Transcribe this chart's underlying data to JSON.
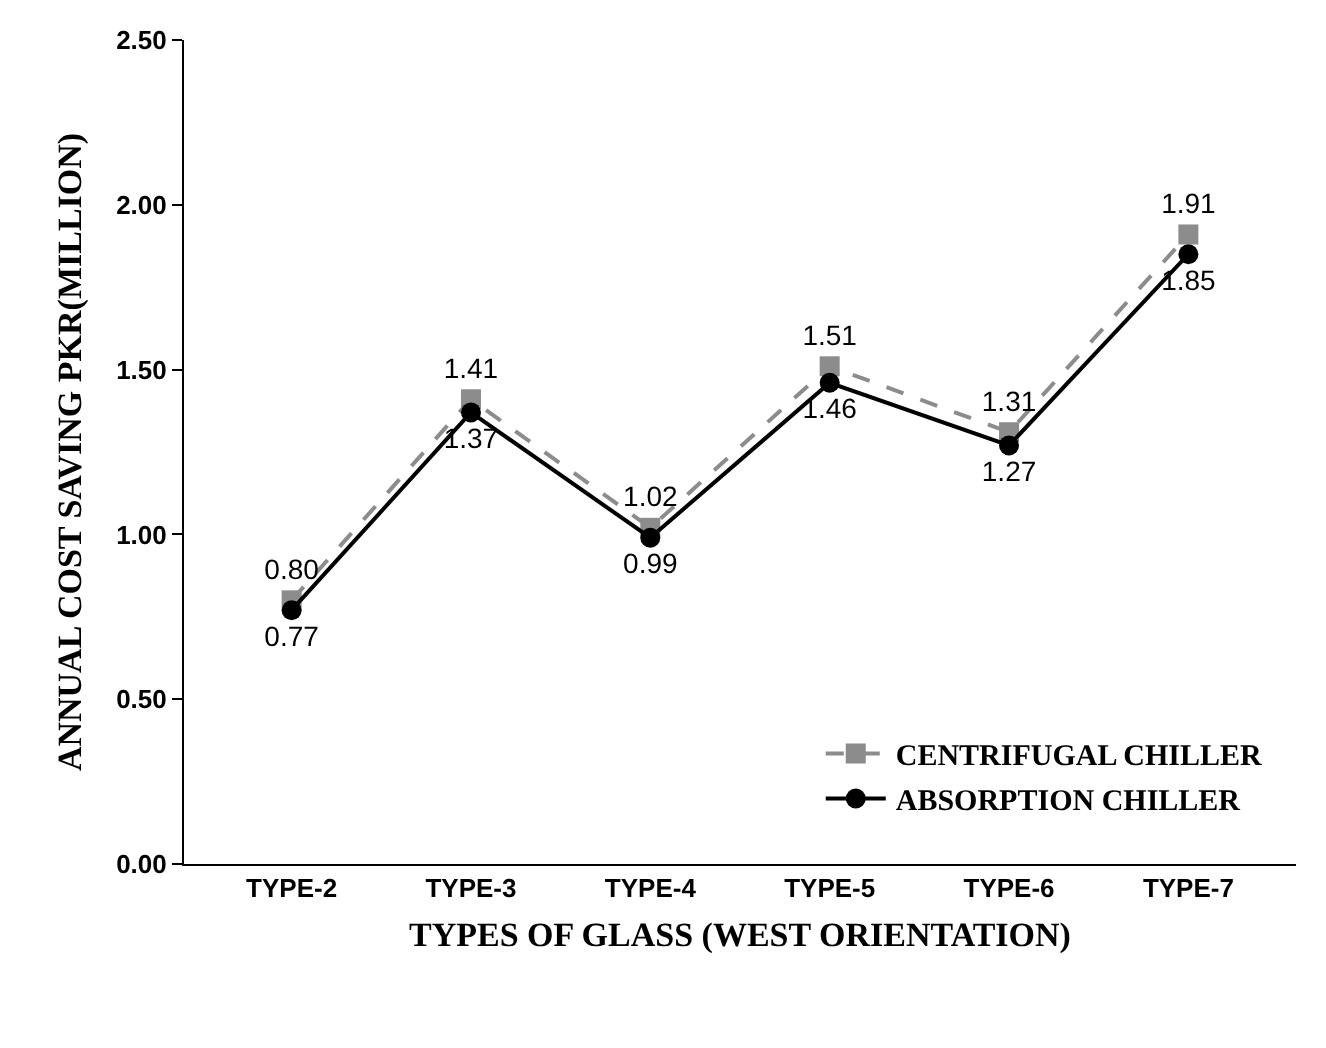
{
  "chart_data": {
    "type": "line",
    "xlabel": "TYPES OF GLASS (WEST ORIENTATION)",
    "ylabel": "ANNUAL COST SAVING PKR(MILLION)",
    "categories": [
      "TYPE-2",
      "TYPE-3",
      "TYPE-4",
      "TYPE-5",
      "TYPE-6",
      "TYPE-7"
    ],
    "series": [
      {
        "name": "CENTRIFUGAL CHILLER",
        "color": "#8c8c8c",
        "marker": "square",
        "line_style": "dashed",
        "values": [
          0.8,
          1.41,
          1.02,
          1.51,
          1.31,
          1.91
        ],
        "value_labels": [
          "0.80",
          "1.41",
          "1.02",
          "1.51",
          "1.31",
          "1.91"
        ]
      },
      {
        "name": "ABSORPTION CHILLER",
        "color": "#000000",
        "marker": "circle",
        "line_style": "solid",
        "values": [
          0.77,
          1.37,
          0.99,
          1.46,
          1.27,
          1.85
        ],
        "value_labels": [
          "0.77",
          "1.37",
          "0.99",
          "1.46",
          "1.27",
          "1.85"
        ]
      }
    ],
    "ylim": [
      0,
      2.5
    ],
    "yticks": [
      {
        "value": 0,
        "label": "0.00"
      },
      {
        "value": 0.5,
        "label": "0.50"
      },
      {
        "value": 1,
        "label": "1.00"
      },
      {
        "value": 1.5,
        "label": "1.50"
      },
      {
        "value": 2,
        "label": "2.00"
      },
      {
        "value": 2.5,
        "label": "2.50"
      }
    ],
    "grid": false,
    "legend": "bottom right"
  }
}
